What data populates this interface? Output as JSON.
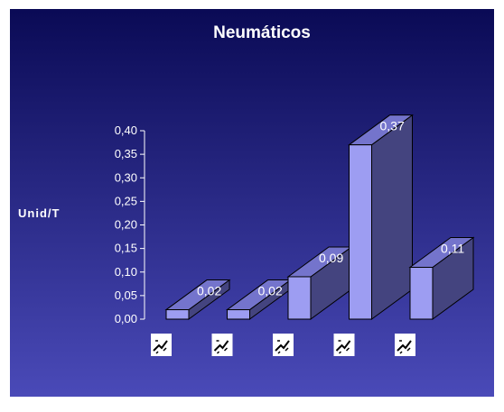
{
  "chart_data": {
    "type": "bar",
    "title": "Neumáticos",
    "xlabel": "",
    "ylabel": "Unid/T",
    "ylim": [
      0,
      0.4
    ],
    "yticks": [
      "0,00",
      "0,05",
      "0,10",
      "0,15",
      "0,20",
      "0,25",
      "0,30",
      "0,35",
      "0,40"
    ],
    "categories": [
      "",
      "",
      "",
      "",
      ""
    ],
    "values": [
      0.02,
      0.02,
      0.09,
      0.37,
      0.11
    ],
    "data_labels": [
      "0,02",
      "0,02",
      "0,09",
      "0,37",
      "0,11"
    ],
    "grid": false,
    "legend": "none",
    "style": "3d-column"
  },
  "colors": {
    "background_top": "#0a0a55",
    "background_bottom": "#4a4ab8",
    "bar_front": "#9d9df2",
    "bar_top": "#7474cc",
    "bar_side": "#44447f",
    "text": "#ffffff"
  }
}
